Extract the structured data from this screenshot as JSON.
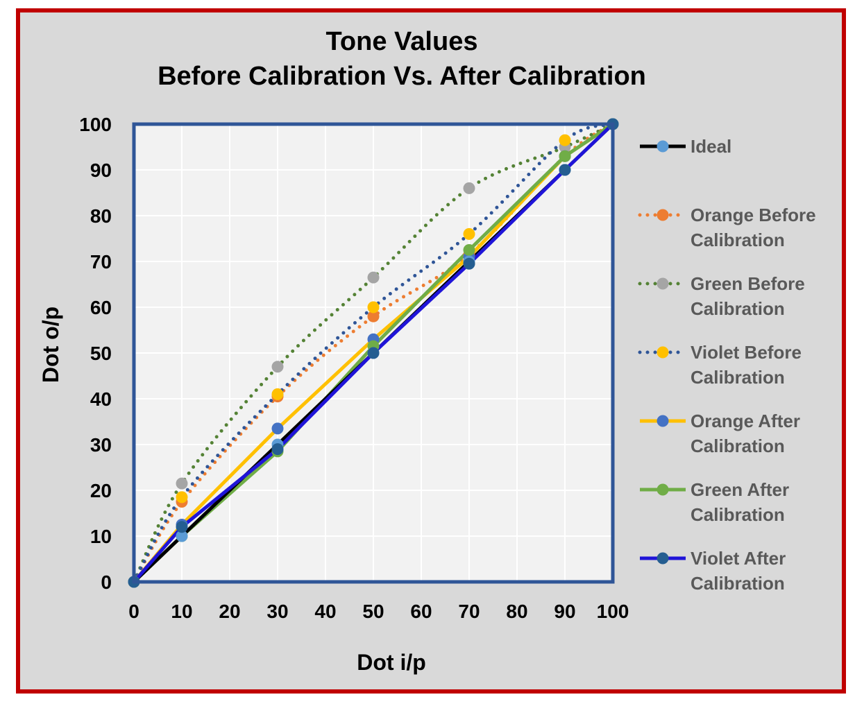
{
  "chart_data": {
    "type": "line",
    "title_lines": [
      "Tone Values",
      "Before Calibration Vs. After Calibration"
    ],
    "xlabel": "Dot i/p",
    "ylabel": "Dot o/p",
    "xlim": [
      0,
      100
    ],
    "ylim": [
      0,
      100
    ],
    "xticks": [
      0,
      10,
      20,
      30,
      40,
      50,
      60,
      70,
      80,
      90,
      100
    ],
    "yticks": [
      0,
      10,
      20,
      30,
      40,
      50,
      60,
      70,
      80,
      90,
      100
    ],
    "grid": true,
    "legend_position": "right",
    "colors": {
      "frame_border": "#c00000",
      "frame_background": "#d9d9d9",
      "plot_background": "#f2f2f2",
      "plot_border": "#2f5597",
      "gridline": "#ffffff"
    },
    "series": [
      {
        "name": "Ideal",
        "style": "solid",
        "line_color": "#000000",
        "marker_color": "#5b9bd5",
        "smooth": false,
        "x": [
          0,
          10,
          30,
          50,
          70,
          90,
          100
        ],
        "y": [
          0,
          10,
          30,
          50,
          70,
          90,
          100
        ]
      },
      {
        "name": "Orange Before Calibration",
        "style": "dotted",
        "line_color": "#ed7d31",
        "marker_color": "#ed7d31",
        "smooth": true,
        "x": [
          0,
          10,
          30,
          50,
          70,
          90,
          100
        ],
        "y": [
          0,
          17.5,
          40.5,
          58,
          71.5,
          93,
          100
        ]
      },
      {
        "name": "Green Before Calibration",
        "style": "dotted",
        "line_color": "#548235",
        "marker_color": "#a5a5a5",
        "smooth": true,
        "x": [
          0,
          10,
          30,
          50,
          70,
          90,
          100
        ],
        "y": [
          0,
          21.5,
          47,
          66.5,
          86,
          95,
          100
        ]
      },
      {
        "name": "Violet Before Calibration",
        "style": "dotted",
        "line_color": "#2f5597",
        "marker_color": "#ffc000",
        "smooth": true,
        "x": [
          0,
          10,
          30,
          50,
          70,
          90,
          100
        ],
        "y": [
          0,
          18.5,
          41,
          60,
          76,
          96.5,
          100
        ]
      },
      {
        "name": "Orange After Calibration",
        "style": "solid",
        "line_color": "#ffc000",
        "marker_color": "#4472c4",
        "smooth": false,
        "x": [
          0,
          10,
          30,
          50,
          70,
          90,
          100
        ],
        "y": [
          0,
          12.5,
          33.5,
          53,
          71,
          93,
          100
        ]
      },
      {
        "name": "Green After Calibration",
        "style": "solid",
        "line_color": "#70ad47",
        "marker_color": "#70ad47",
        "smooth": false,
        "x": [
          0,
          10,
          30,
          50,
          70,
          90,
          100
        ],
        "y": [
          0,
          10,
          28.5,
          51.5,
          72.5,
          93,
          100
        ]
      },
      {
        "name": "Violet After Calibration",
        "style": "solid",
        "line_color": "#1f14d8",
        "marker_color": "#255e91",
        "smooth": false,
        "x": [
          0,
          10,
          30,
          50,
          70,
          90,
          100
        ],
        "y": [
          0,
          12,
          29,
          50,
          69.5,
          90,
          100
        ]
      }
    ]
  }
}
